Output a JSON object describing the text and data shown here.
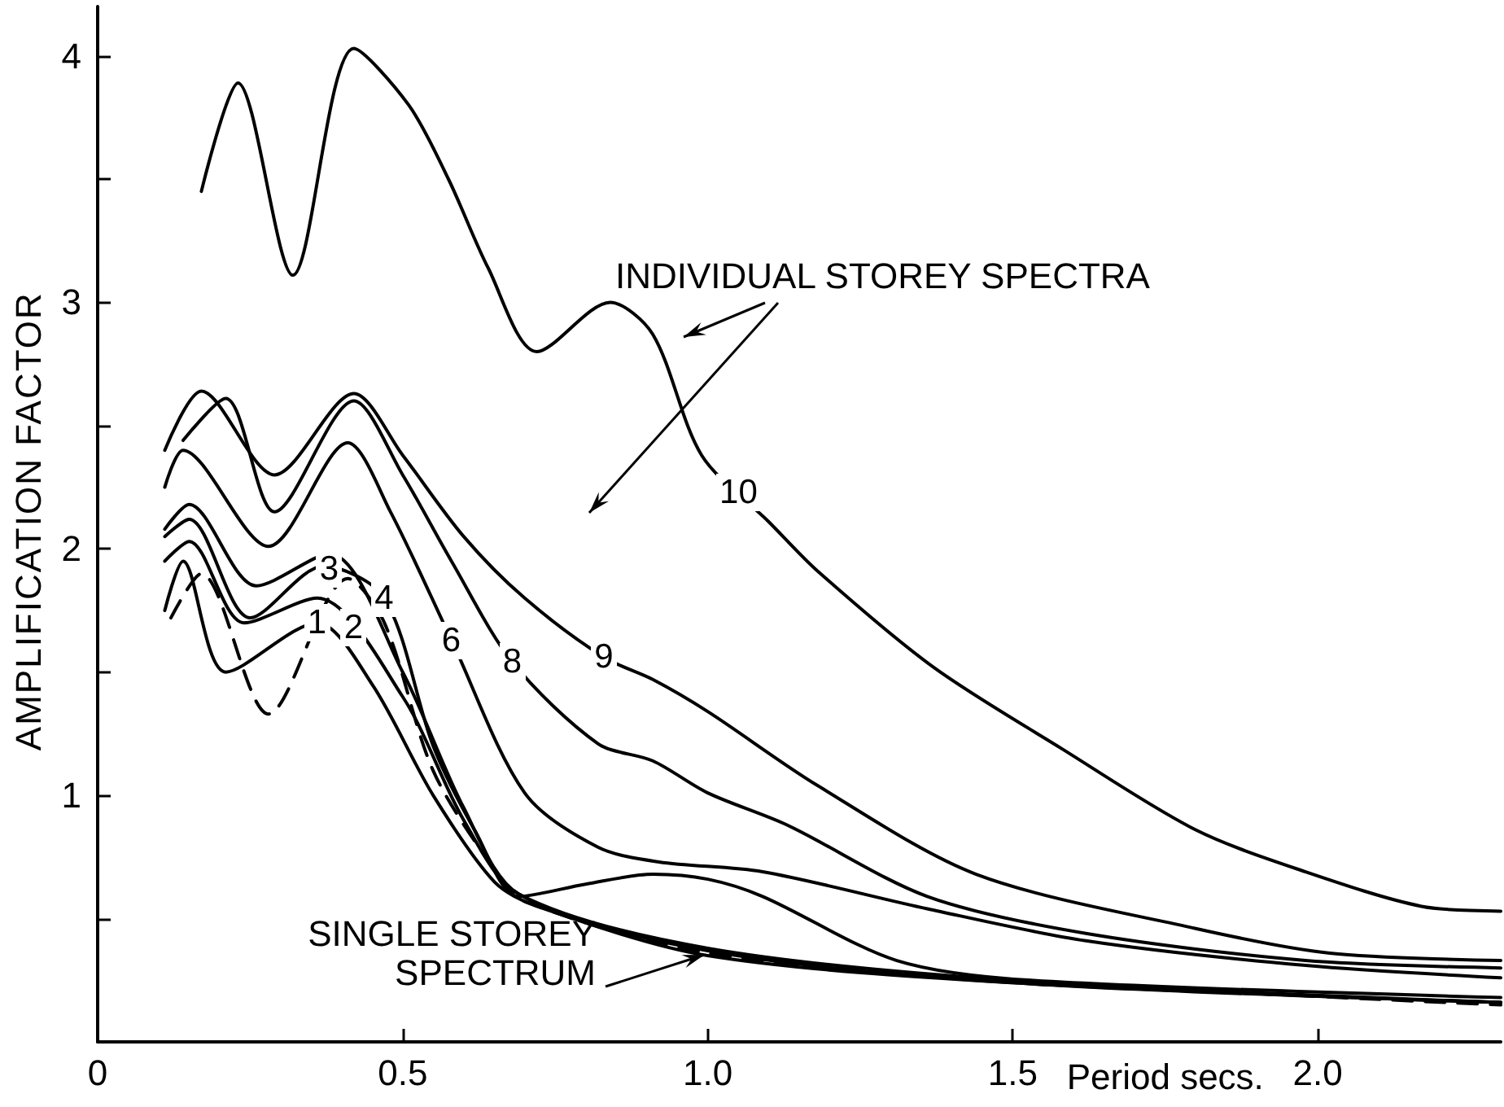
{
  "chart_data": {
    "type": "line",
    "xlabel": "Period secs.",
    "ylabel": "AMPLIFICATION FACTOR",
    "xlim": [
      0,
      2.3
    ],
    "ylim": [
      0,
      4.2
    ],
    "xticks": [
      {
        "value": 0,
        "label": "0"
      },
      {
        "value": 0.5,
        "label": "0.5"
      },
      {
        "value": 1,
        "label": "1.0"
      },
      {
        "value": 1.5,
        "label": "1.5"
      },
      {
        "value": 2,
        "label": "2.0"
      }
    ],
    "yticks": [
      {
        "value": 0.5,
        "label": null
      },
      1,
      {
        "value": 1.5,
        "label": null
      },
      2,
      {
        "value": 2.5,
        "label": null
      },
      3,
      {
        "value": 3.5,
        "label": null
      },
      4
    ],
    "grid": false,
    "marker": "none",
    "series": [
      {
        "color": "#000000",
        "line_style": "solid",
        "x": [
          0.17,
          0.23,
          0.32,
          0.42,
          0.51,
          0.575,
          0.64,
          0.72,
          0.84,
          0.91,
          0.99,
          1.1,
          1.18,
          1.37,
          1.58,
          1.8,
          1.98,
          2.17,
          2.3
        ],
        "values": [
          3.45,
          3.89,
          3.11,
          4.03,
          3.8,
          3.5,
          3.14,
          2.8,
          3.0,
          2.87,
          2.38,
          2.11,
          1.91,
          1.52,
          1.19,
          0.86,
          0.69,
          0.55,
          0.53
        ]
      },
      {
        "color": "#000000",
        "line_style": "solid",
        "x": [
          0.11,
          0.17,
          0.29,
          0.42,
          0.5,
          0.6,
          0.7,
          0.83,
          0.91,
          1.0,
          1.18,
          1.44,
          1.8,
          2.02,
          2.3
        ],
        "values": [
          2.4,
          2.64,
          2.3,
          2.63,
          2.38,
          2.05,
          1.8,
          1.56,
          1.47,
          1.34,
          1.04,
          0.68,
          0.46,
          0.36,
          0.33
        ]
      },
      {
        "color": "#000000",
        "line_style": "solid",
        "x": [
          0.14,
          0.21,
          0.29,
          0.42,
          0.5,
          0.58,
          0.68,
          0.82,
          0.91,
          1.0,
          1.13,
          1.36,
          1.62,
          1.98,
          2.3
        ],
        "values": [
          2.44,
          2.61,
          2.15,
          2.6,
          2.3,
          1.95,
          1.54,
          1.21,
          1.14,
          1.01,
          0.88,
          0.59,
          0.44,
          0.33,
          0.3
        ]
      },
      {
        "color": "#000000",
        "line_style": "solid",
        "x": [
          0.11,
          0.14,
          0.28,
          0.41,
          0.48,
          0.58,
          0.7,
          0.82,
          0.92,
          1.09,
          1.36,
          1.62,
          1.98,
          2.3
        ],
        "values": [
          2.25,
          2.4,
          2.01,
          2.43,
          2.15,
          1.63,
          1.01,
          0.79,
          0.73,
          0.69,
          0.54,
          0.41,
          0.31,
          0.26
        ]
      },
      {
        "color": "#000000",
        "line_style": "solid",
        "x": [
          0.11,
          0.15,
          0.25,
          0.37,
          0.47,
          0.55,
          0.62,
          0.69,
          0.8,
          0.91,
          1.0,
          1.09,
          1.31,
          1.53,
          2.3
        ],
        "values": [
          2.05,
          2.12,
          1.72,
          1.93,
          1.8,
          1.2,
          0.85,
          0.59,
          0.64,
          0.68,
          0.66,
          0.59,
          0.33,
          0.25,
          0.18
        ]
      },
      {
        "color": "#000000",
        "line_style": "solid",
        "x": [
          0.11,
          0.15,
          0.26,
          0.38,
          0.5,
          0.6,
          0.69,
          1.0,
          1.5,
          2.3
        ],
        "values": [
          2.08,
          2.18,
          1.85,
          1.98,
          1.5,
          0.95,
          0.6,
          0.37,
          0.24,
          0.16
        ]
      },
      {
        "color": "#000000",
        "line_style": "solid",
        "x": [
          0.11,
          0.15,
          0.24,
          0.36,
          0.5,
          0.6,
          0.69,
          1.0,
          1.5,
          2.3
        ],
        "values": [
          1.95,
          2.03,
          1.7,
          1.8,
          1.4,
          0.9,
          0.6,
          0.38,
          0.25,
          0.16
        ]
      },
      {
        "color": "#000000",
        "line_style": "solid",
        "x": [
          0.11,
          0.14,
          0.21,
          0.36,
          0.45,
          0.55,
          0.65,
          0.72,
          1.0,
          1.5,
          2.3
        ],
        "values": [
          1.75,
          1.95,
          1.5,
          1.7,
          1.45,
          1.0,
          0.65,
          0.55,
          0.35,
          0.24,
          0.16
        ]
      },
      {
        "color": "#000000",
        "line_style": "dashed",
        "x": [
          0.12,
          0.17,
          0.28,
          0.41,
          0.47,
          0.55,
          0.65,
          0.7,
          1.0,
          1.5,
          2.3
        ],
        "values": [
          1.72,
          1.9,
          1.33,
          1.88,
          1.7,
          1.1,
          0.7,
          0.57,
          0.36,
          0.25,
          0.15
        ]
      }
    ],
    "annotations": [
      "INDIVIDUAL STOREY SPECTRA",
      {
        "text": "SINGLE STOREY SPECTRUM",
        "x": 1.0,
        "y": 0.36
      },
      {
        "text": "10",
        "x": 1.05,
        "y": 2.23
      },
      {
        "text": "9",
        "x": 0.83,
        "y": 1.56
      },
      {
        "text": "8",
        "x": 0.68,
        "y": 1.54
      },
      {
        "text": "6",
        "x": 0.58,
        "y": 1.63
      },
      {
        "text": "4",
        "x": 0.47,
        "y": 1.8
      },
      {
        "text": "3",
        "x": 0.38,
        "y": 1.92
      },
      {
        "text": "2",
        "x": 0.42,
        "y": 1.68
      },
      {
        "text": "1",
        "x": 0.36,
        "y": 1.7
      }
    ]
  }
}
